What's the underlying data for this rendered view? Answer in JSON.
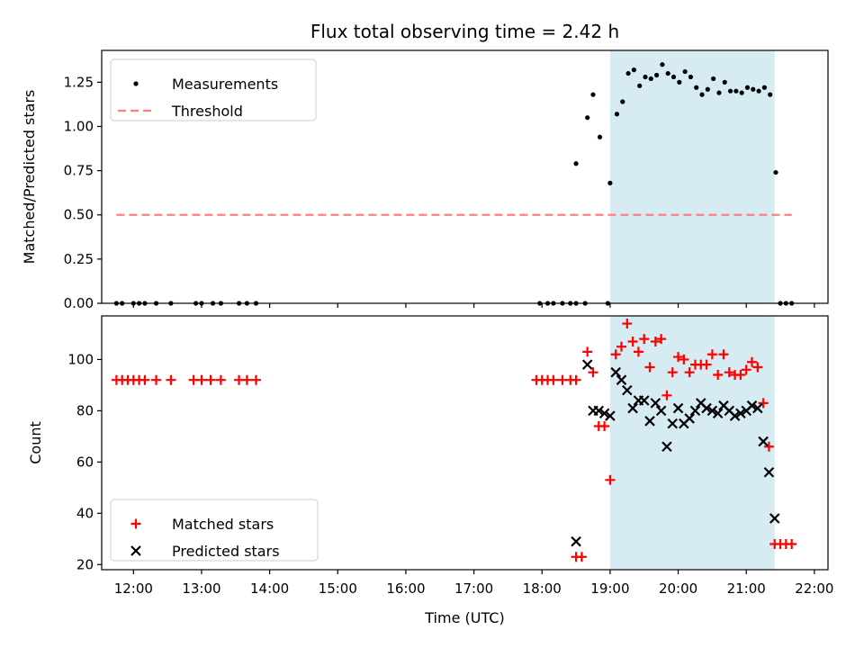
{
  "chart_data": [
    {
      "type": "scatter",
      "title": "Flux total observing time = 2.42 h",
      "xlabel": "",
      "ylabel": "Matched/Predicted stars",
      "xlim": [
        "11:32",
        "22:12"
      ],
      "ylim": [
        0,
        1.43
      ],
      "yticks": [
        0.0,
        0.25,
        0.5,
        0.75,
        1.0,
        1.25
      ],
      "ytick_labels": [
        "0.00",
        "0.25",
        "0.50",
        "0.75",
        "1.00",
        "1.25"
      ],
      "shaded_region": {
        "x_start": "19:00",
        "x_end": "21:25",
        "color": "#add8e6"
      },
      "legend": {
        "location": "upper left",
        "entries": [
          "Measurements",
          "Threshold"
        ]
      },
      "series": [
        {
          "name": "Measurements",
          "marker": "dot",
          "color": "#000000",
          "points": [
            [
              "11:45",
              0.0
            ],
            [
              "11:50",
              0.0
            ],
            [
              "12:00",
              0.0
            ],
            [
              "12:05",
              0.0
            ],
            [
              "12:10",
              0.0
            ],
            [
              "12:20",
              0.0
            ],
            [
              "12:33",
              0.0
            ],
            [
              "12:55",
              0.0
            ],
            [
              "13:00",
              0.0
            ],
            [
              "13:10",
              0.0
            ],
            [
              "13:17",
              0.0
            ],
            [
              "13:33",
              0.0
            ],
            [
              "13:40",
              0.0
            ],
            [
              "13:48",
              0.0
            ],
            [
              "17:58",
              0.0
            ],
            [
              "18:05",
              0.0
            ],
            [
              "18:10",
              0.0
            ],
            [
              "18:18",
              0.0
            ],
            [
              "18:25",
              0.0
            ],
            [
              "18:30",
              0.0
            ],
            [
              "18:38",
              0.0
            ],
            [
              "18:58",
              0.0
            ],
            [
              "18:30",
              0.79
            ],
            [
              "18:40",
              1.05
            ],
            [
              "18:45",
              1.18
            ],
            [
              "18:51",
              0.94
            ],
            [
              "19:00",
              0.68
            ],
            [
              "19:06",
              1.07
            ],
            [
              "19:11",
              1.14
            ],
            [
              "19:16",
              1.3
            ],
            [
              "19:21",
              1.32
            ],
            [
              "19:26",
              1.23
            ],
            [
              "19:31",
              1.28
            ],
            [
              "19:36",
              1.27
            ],
            [
              "19:41",
              1.29
            ],
            [
              "19:46",
              1.35
            ],
            [
              "19:51",
              1.3
            ],
            [
              "19:56",
              1.28
            ],
            [
              "20:01",
              1.25
            ],
            [
              "20:06",
              1.31
            ],
            [
              "20:11",
              1.28
            ],
            [
              "20:16",
              1.22
            ],
            [
              "20:21",
              1.18
            ],
            [
              "20:26",
              1.21
            ],
            [
              "20:31",
              1.27
            ],
            [
              "20:36",
              1.19
            ],
            [
              "20:41",
              1.25
            ],
            [
              "20:46",
              1.2
            ],
            [
              "20:51",
              1.2
            ],
            [
              "20:56",
              1.19
            ],
            [
              "21:01",
              1.22
            ],
            [
              "21:06",
              1.21
            ],
            [
              "21:11",
              1.2
            ],
            [
              "21:16",
              1.22
            ],
            [
              "21:21",
              1.18
            ],
            [
              "21:26",
              0.74
            ],
            [
              "21:30",
              0.0
            ],
            [
              "21:35",
              0.0
            ],
            [
              "21:40",
              0.0
            ]
          ]
        },
        {
          "name": "Threshold",
          "style": "dashed",
          "color": "#ff7f7f",
          "points": [
            [
              "11:45",
              0.5
            ],
            [
              "21:40",
              0.5
            ]
          ]
        }
      ]
    },
    {
      "type": "scatter",
      "title": "",
      "xlabel": "Time (UTC)",
      "ylabel": "Count",
      "xlim": [
        "11:32",
        "22:12"
      ],
      "ylim": [
        18,
        117
      ],
      "yticks": [
        20,
        40,
        60,
        80,
        100
      ],
      "ytick_labels": [
        "20",
        "40",
        "60",
        "80",
        "100"
      ],
      "xticks": [
        "12:00",
        "13:00",
        "14:00",
        "15:00",
        "16:00",
        "17:00",
        "18:00",
        "19:00",
        "20:00",
        "21:00",
        "22:00"
      ],
      "shaded_region": {
        "x_start": "19:00",
        "x_end": "21:25",
        "color": "#add8e6"
      },
      "legend": {
        "location": "lower left",
        "entries": [
          "Matched stars",
          "Predicted stars"
        ]
      },
      "series": [
        {
          "name": "Matched stars",
          "marker": "plus",
          "color": "#ff0000",
          "points": [
            [
              "11:45",
              92
            ],
            [
              "11:50",
              92
            ],
            [
              "11:55",
              92
            ],
            [
              "12:00",
              92
            ],
            [
              "12:05",
              92
            ],
            [
              "12:10",
              92
            ],
            [
              "12:20",
              92
            ],
            [
              "12:33",
              92
            ],
            [
              "12:53",
              92
            ],
            [
              "13:00",
              92
            ],
            [
              "13:08",
              92
            ],
            [
              "13:17",
              92
            ],
            [
              "13:33",
              92
            ],
            [
              "13:40",
              92
            ],
            [
              "13:48",
              92
            ],
            [
              "17:55",
              92
            ],
            [
              "18:00",
              92
            ],
            [
              "18:05",
              92
            ],
            [
              "18:10",
              92
            ],
            [
              "18:18",
              92
            ],
            [
              "18:25",
              92
            ],
            [
              "18:30",
              92
            ],
            [
              "18:30",
              23
            ],
            [
              "18:35",
              23
            ],
            [
              "18:40",
              103
            ],
            [
              "18:45",
              95
            ],
            [
              "18:50",
              74
            ],
            [
              "18:55",
              74
            ],
            [
              "19:00",
              53
            ],
            [
              "19:05",
              102
            ],
            [
              "19:10",
              105
            ],
            [
              "19:15",
              114
            ],
            [
              "19:20",
              107
            ],
            [
              "19:25",
              103
            ],
            [
              "19:30",
              108
            ],
            [
              "19:35",
              97
            ],
            [
              "19:40",
              107
            ],
            [
              "19:45",
              108
            ],
            [
              "19:50",
              86
            ],
            [
              "19:55",
              95
            ],
            [
              "20:00",
              101
            ],
            [
              "20:05",
              100
            ],
            [
              "20:10",
              95
            ],
            [
              "20:15",
              98
            ],
            [
              "20:20",
              98
            ],
            [
              "20:25",
              98
            ],
            [
              "20:30",
              102
            ],
            [
              "20:35",
              94
            ],
            [
              "20:40",
              102
            ],
            [
              "20:45",
              95
            ],
            [
              "20:50",
              94
            ],
            [
              "20:55",
              94
            ],
            [
              "21:00",
              96
            ],
            [
              "21:05",
              99
            ],
            [
              "21:10",
              97
            ],
            [
              "21:15",
              83
            ],
            [
              "21:20",
              66
            ],
            [
              "21:25",
              28
            ],
            [
              "21:30",
              28
            ],
            [
              "21:35",
              28
            ],
            [
              "21:40",
              28
            ]
          ]
        },
        {
          "name": "Predicted stars",
          "marker": "x",
          "color": "#000000",
          "points": [
            [
              "18:30",
              29
            ],
            [
              "18:40",
              98
            ],
            [
              "18:45",
              80
            ],
            [
              "18:50",
              80
            ],
            [
              "18:55",
              79
            ],
            [
              "19:00",
              78
            ],
            [
              "19:05",
              95
            ],
            [
              "19:10",
              92
            ],
            [
              "19:15",
              88
            ],
            [
              "19:20",
              81
            ],
            [
              "19:25",
              84
            ],
            [
              "19:30",
              84
            ],
            [
              "19:35",
              76
            ],
            [
              "19:40",
              83
            ],
            [
              "19:45",
              80
            ],
            [
              "19:50",
              66
            ],
            [
              "19:55",
              75
            ],
            [
              "20:00",
              81
            ],
            [
              "20:05",
              75
            ],
            [
              "20:10",
              77
            ],
            [
              "20:15",
              80
            ],
            [
              "20:20",
              83
            ],
            [
              "20:25",
              81
            ],
            [
              "20:30",
              80
            ],
            [
              "20:35",
              79
            ],
            [
              "20:40",
              82
            ],
            [
              "20:45",
              80
            ],
            [
              "20:50",
              78
            ],
            [
              "20:55",
              79
            ],
            [
              "21:00",
              80
            ],
            [
              "21:05",
              82
            ],
            [
              "21:10",
              81
            ],
            [
              "21:15",
              68
            ],
            [
              "21:20",
              56
            ],
            [
              "21:25",
              38
            ]
          ]
        }
      ]
    }
  ]
}
